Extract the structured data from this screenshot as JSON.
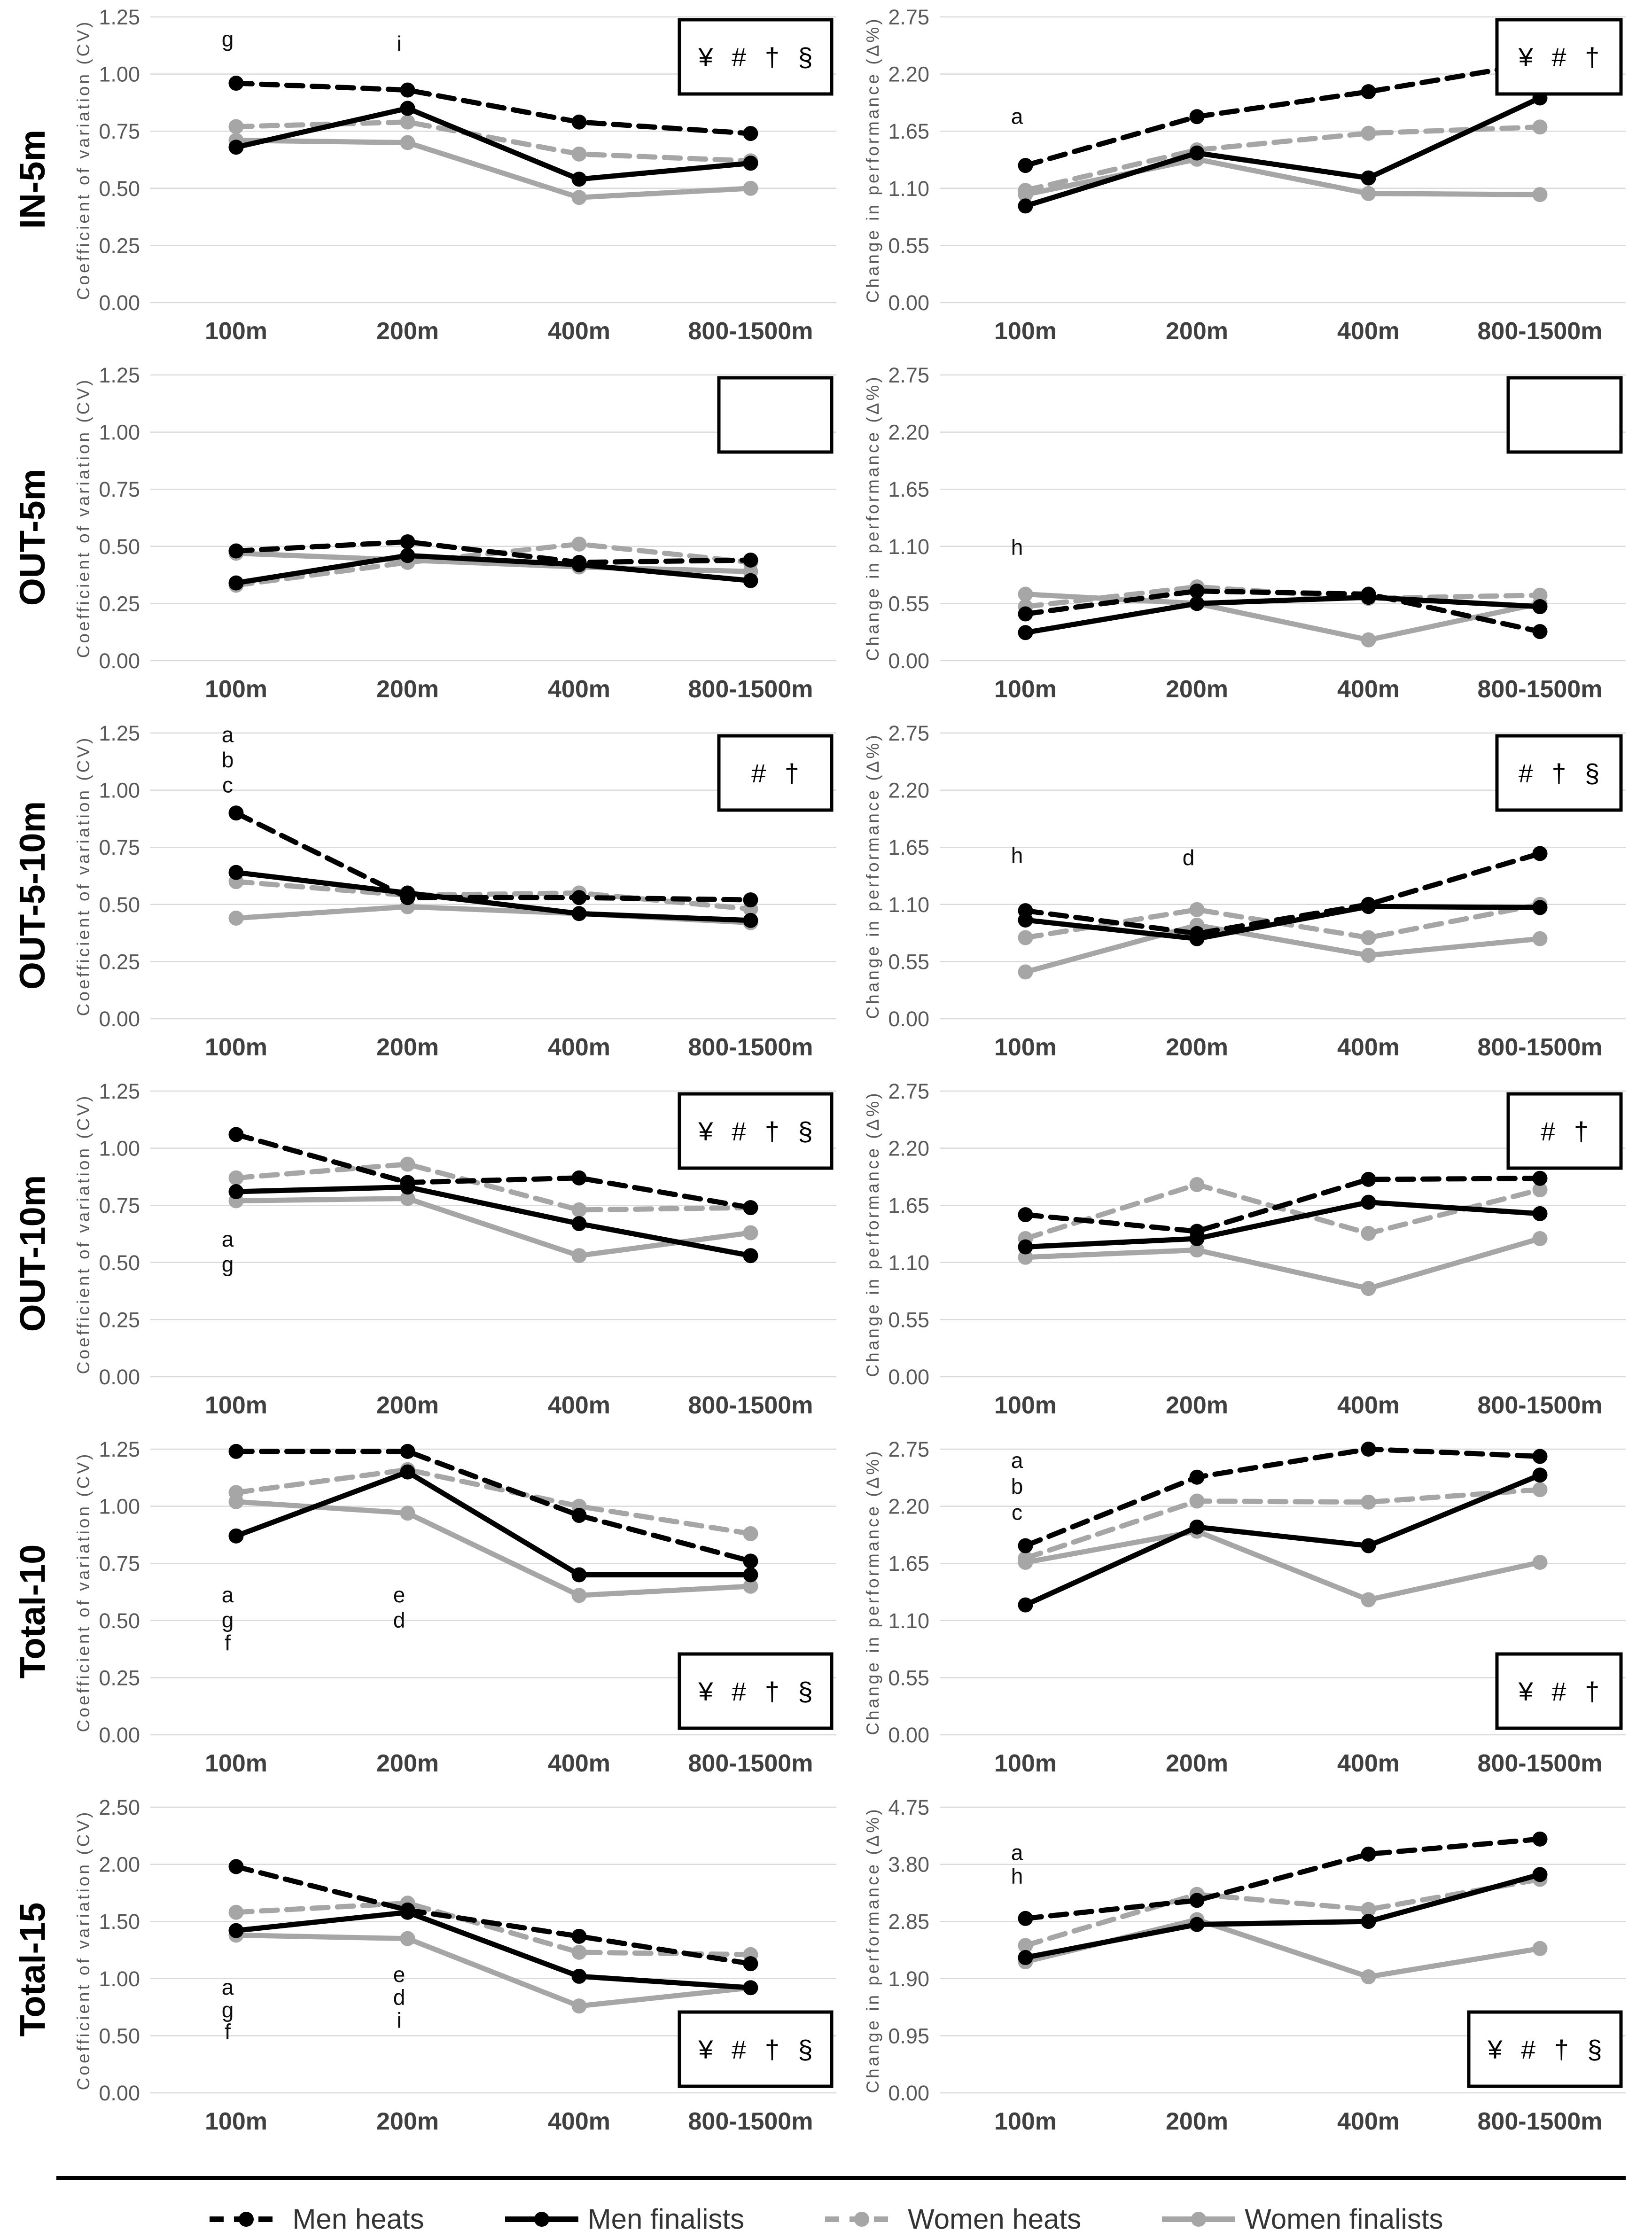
{
  "chart_data": {
    "type": "line",
    "categories": [
      "100m",
      "200m",
      "400m",
      "800-1500m"
    ],
    "series_defs": [
      {
        "key": "men_heats",
        "label": "Men heats",
        "color": "#000000",
        "dashed": true
      },
      {
        "key": "men_finalists",
        "label": "Men finalists",
        "color": "#000000",
        "dashed": false
      },
      {
        "key": "women_heats",
        "label": "Women heats",
        "color": "#a6a6a6",
        "dashed": true
      },
      {
        "key": "women_finalists",
        "label": "Women finalists",
        "color": "#a6a6a6",
        "dashed": false
      }
    ],
    "style_colors": {
      "grid": "#d9d9d9",
      "ytick_text": "#595959",
      "xtick_text": "#404040"
    },
    "left_ylabel": "Coefficient of variation (CV)",
    "right_ylabel": "Change in performance (Δ%)",
    "rows": [
      {
        "row_label": "IN-5m",
        "panels": [
          {
            "ylabel": "Coefficient of variation (CV)",
            "ylim": [
              0,
              1.25
            ],
            "ytick_step": 0.25,
            "sig_box": "¥ # † §",
            "sig_box_pos": "top",
            "series": {
              "men_heats": [
                0.96,
                0.93,
                0.79,
                0.74
              ],
              "men_finalists": [
                0.68,
                0.85,
                0.54,
                0.61
              ],
              "women_heats": [
                0.77,
                0.79,
                0.65,
                0.62
              ],
              "women_finalists": [
                0.71,
                0.7,
                0.46,
                0.5
              ]
            },
            "letters": [
              {
                "t": "g",
                "cat": 0,
                "y": 1.12
              },
              {
                "t": "i",
                "cat": 1,
                "y": 1.1
              }
            ]
          },
          {
            "ylabel": "Change in performance (Δ%)",
            "ylim": [
              0,
              2.75
            ],
            "ytick_step": 0.55,
            "sig_box": "¥ # †",
            "sig_box_pos": "top",
            "series": {
              "men_heats": [
                1.32,
                1.79,
                2.03,
                2.31
              ],
              "men_finalists": [
                0.93,
                1.44,
                1.2,
                1.97
              ],
              "women_heats": [
                1.08,
                1.47,
                1.63,
                1.69
              ],
              "women_finalists": [
                1.04,
                1.38,
                1.05,
                1.04
              ]
            },
            "letters": [
              {
                "t": "a",
                "cat": 0,
                "y": 1.72
              }
            ]
          }
        ]
      },
      {
        "row_label": "OUT-5m",
        "panels": [
          {
            "ylabel": "Coefficient of variation (CV)",
            "ylim": [
              0,
              1.25
            ],
            "ytick_step": 0.25,
            "sig_box": "",
            "sig_box_pos": "top",
            "series": {
              "men_heats": [
                0.48,
                0.52,
                0.43,
                0.44
              ],
              "men_finalists": [
                0.34,
                0.46,
                0.42,
                0.35
              ],
              "women_heats": [
                0.33,
                0.43,
                0.51,
                0.43
              ],
              "women_finalists": [
                0.47,
                0.44,
                0.41,
                0.39
              ]
            },
            "letters": []
          },
          {
            "ylabel": "Change in performance (Δ%)",
            "ylim": [
              0,
              2.75
            ],
            "ytick_step": 0.55,
            "sig_box": "",
            "sig_box_pos": "top",
            "series": {
              "men_heats": [
                0.45,
                0.67,
                0.64,
                0.28
              ],
              "men_finalists": [
                0.27,
                0.55,
                0.61,
                0.52
              ],
              "women_heats": [
                0.52,
                0.71,
                0.6,
                0.63
              ],
              "women_finalists": [
                0.64,
                0.55,
                0.2,
                0.55
              ]
            },
            "letters": [
              {
                "t": "h",
                "cat": 0,
                "y": 1.02
              }
            ]
          }
        ]
      },
      {
        "row_label": "OUT-5-10m",
        "panels": [
          {
            "ylabel": "Coefficient of variation (CV)",
            "ylim": [
              0,
              1.25
            ],
            "ytick_step": 0.25,
            "sig_box": "# †",
            "sig_box_pos": "top",
            "series": {
              "men_heats": [
                0.9,
                0.53,
                0.53,
                0.52
              ],
              "men_finalists": [
                0.64,
                0.55,
                0.46,
                0.43
              ],
              "women_heats": [
                0.6,
                0.54,
                0.55,
                0.48
              ],
              "women_finalists": [
                0.44,
                0.49,
                0.46,
                0.42
              ]
            },
            "letters": [
              {
                "t": "a",
                "cat": 0,
                "y": 1.21
              },
              {
                "t": "b",
                "cat": 0,
                "y": 1.1
              },
              {
                "t": "c",
                "cat": 0,
                "y": 0.99
              }
            ]
          },
          {
            "ylabel": "Change in performance (Δ%)",
            "ylim": [
              0,
              2.75
            ],
            "ytick_step": 0.55,
            "sig_box": "# † §",
            "sig_box_pos": "top",
            "series": {
              "men_heats": [
                1.04,
                0.82,
                1.1,
                1.59
              ],
              "men_finalists": [
                0.95,
                0.77,
                1.08,
                1.07
              ],
              "women_heats": [
                0.78,
                1.05,
                0.78,
                1.1
              ],
              "women_finalists": [
                0.45,
                0.9,
                0.61,
                0.77
              ]
            },
            "letters": [
              {
                "t": "h",
                "cat": 0,
                "y": 1.5
              },
              {
                "t": "d",
                "cat": 1,
                "y": 1.48
              }
            ]
          }
        ]
      },
      {
        "row_label": "OUT-10m",
        "panels": [
          {
            "ylabel": "Coefficient of variation (CV)",
            "ylim": [
              0,
              1.25
            ],
            "ytick_step": 0.25,
            "sig_box": "¥ # † §",
            "sig_box_pos": "top",
            "series": {
              "men_heats": [
                1.06,
                0.85,
                0.87,
                0.74
              ],
              "men_finalists": [
                0.81,
                0.83,
                0.67,
                0.53
              ],
              "women_heats": [
                0.87,
                0.93,
                0.73,
                0.74
              ],
              "women_finalists": [
                0.77,
                0.78,
                0.53,
                0.63
              ]
            },
            "letters": [
              {
                "t": "a",
                "cat": 0,
                "y": 0.57
              },
              {
                "t": "g",
                "cat": 0,
                "y": 0.46
              }
            ]
          },
          {
            "ylabel": "Change in performance (Δ%)",
            "ylim": [
              0,
              2.75
            ],
            "ytick_step": 0.55,
            "sig_box": "# †",
            "sig_box_pos": "top",
            "series": {
              "men_heats": [
                1.56,
                1.4,
                1.9,
                1.91
              ],
              "men_finalists": [
                1.25,
                1.33,
                1.68,
                1.57
              ],
              "women_heats": [
                1.33,
                1.85,
                1.38,
                1.8
              ],
              "women_finalists": [
                1.15,
                1.22,
                0.85,
                1.33
              ]
            },
            "letters": []
          }
        ]
      },
      {
        "row_label": "Total-10",
        "panels": [
          {
            "ylabel": "Coefficient of variation (CV)",
            "ylim": [
              0,
              1.25
            ],
            "ytick_step": 0.25,
            "sig_box": "¥ # † §",
            "sig_box_pos": "bottom",
            "series": {
              "men_heats": [
                1.24,
                1.24,
                0.96,
                0.76
              ],
              "men_finalists": [
                0.87,
                1.15,
                0.7,
                0.7
              ],
              "women_heats": [
                1.06,
                1.16,
                1.0,
                0.88
              ],
              "women_finalists": [
                1.02,
                0.97,
                0.61,
                0.65
              ]
            },
            "letters": [
              {
                "t": "a",
                "cat": 0,
                "y": 0.58
              },
              {
                "t": "g",
                "cat": 0,
                "y": 0.47
              },
              {
                "t": "f",
                "cat": 0,
                "y": 0.37
              },
              {
                "t": "e",
                "cat": 1,
                "y": 0.58
              },
              {
                "t": "d",
                "cat": 1,
                "y": 0.47
              }
            ]
          },
          {
            "ylabel": "Change in performance (Δ%)",
            "ylim": [
              0,
              2.75
            ],
            "ytick_step": 0.55,
            "sig_box": "¥ # †",
            "sig_box_pos": "bottom",
            "series": {
              "men_heats": [
                1.82,
                2.48,
                2.75,
                2.68
              ],
              "men_finalists": [
                1.25,
                2.0,
                1.82,
                2.5
              ],
              "women_heats": [
                1.7,
                2.25,
                2.24,
                2.36
              ],
              "women_finalists": [
                1.66,
                1.96,
                1.3,
                1.66
              ]
            },
            "letters": [
              {
                "t": "a",
                "cat": 0,
                "y": 2.57
              },
              {
                "t": "b",
                "cat": 0,
                "y": 2.32
              },
              {
                "t": "c",
                "cat": 0,
                "y": 2.07
              }
            ]
          }
        ]
      },
      {
        "row_label": "Total-15",
        "panels": [
          {
            "ylabel": "Coefficient of variation (CV)",
            "ylim": [
              0,
              2.5
            ],
            "ytick_step": 0.5,
            "sig_box": "¥ # † §",
            "sig_box_pos": "bottom",
            "series": {
              "men_heats": [
                1.98,
                1.6,
                1.37,
                1.13
              ],
              "men_finalists": [
                1.42,
                1.58,
                1.02,
                0.92
              ],
              "women_heats": [
                1.58,
                1.66,
                1.23,
                1.21
              ],
              "women_finalists": [
                1.38,
                1.35,
                0.76,
                0.92
              ]
            },
            "letters": [
              {
                "t": "a",
                "cat": 0,
                "y": 0.86
              },
              {
                "t": "g",
                "cat": 0,
                "y": 0.66
              },
              {
                "t": "f",
                "cat": 0,
                "y": 0.47
              },
              {
                "t": "e",
                "cat": 1,
                "y": 0.97
              },
              {
                "t": "d",
                "cat": 1,
                "y": 0.77
              },
              {
                "t": "i",
                "cat": 1,
                "y": 0.57
              }
            ]
          },
          {
            "ylabel": "Change in performance (Δ%)",
            "ylim": [
              0,
              4.75
            ],
            "ytick_step": 0.95,
            "sig_box": "¥ # † §",
            "sig_box_pos": "bottom",
            "series": {
              "men_heats": [
                2.9,
                3.2,
                3.97,
                4.22
              ],
              "men_finalists": [
                2.25,
                2.8,
                2.85,
                3.63
              ],
              "women_heats": [
                2.45,
                3.3,
                3.05,
                3.55
              ],
              "women_finalists": [
                2.18,
                2.88,
                1.93,
                2.4
              ]
            },
            "letters": [
              {
                "t": "a",
                "cat": 0,
                "y": 3.87
              },
              {
                "t": "h",
                "cat": 0,
                "y": 3.48
              }
            ]
          }
        ]
      }
    ]
  },
  "legend": {
    "items": [
      {
        "label": "Men heats"
      },
      {
        "label": "Men finalists"
      },
      {
        "label": "Women heats"
      },
      {
        "label": "Women finalists"
      }
    ]
  }
}
